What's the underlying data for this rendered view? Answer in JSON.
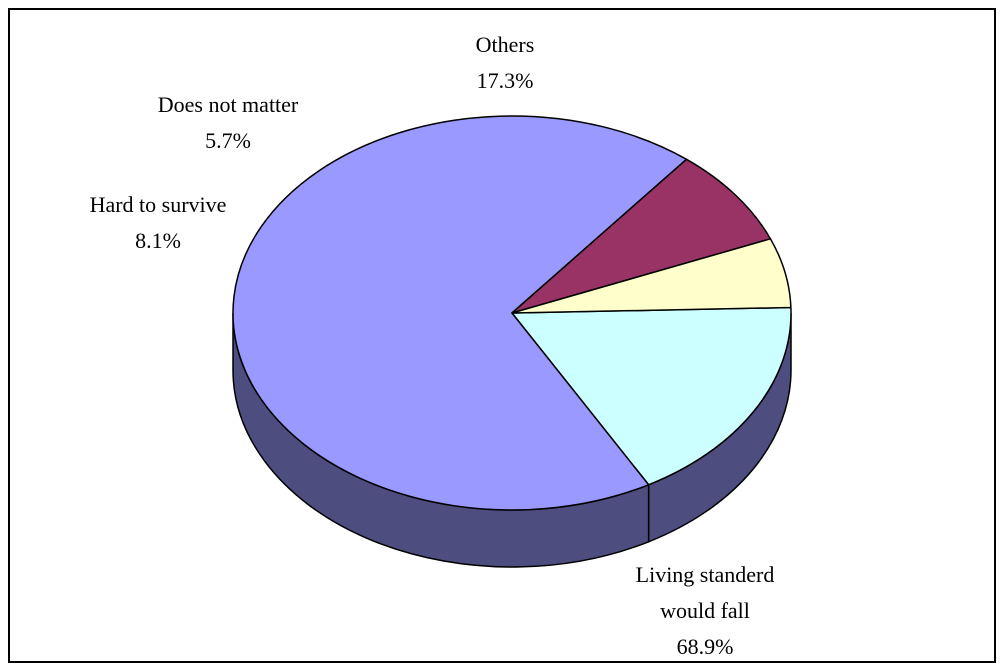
{
  "chart_data": {
    "type": "pie",
    "title": "",
    "slices": [
      {
        "label": "Others",
        "value": 17.3,
        "value_label": "17.3%",
        "color": "#CCFFFF"
      },
      {
        "label": "Living standerd would fall",
        "label_lines": [
          "Living standerd",
          "would fall"
        ],
        "value": 68.9,
        "value_label": "68.9%",
        "color": "#9999FF"
      },
      {
        "label": "Hard to survive",
        "value": 8.1,
        "value_label": "8.1%",
        "color": "#993366"
      },
      {
        "label": "Does not matter",
        "value": 5.7,
        "value_label": "5.7%",
        "color": "#FFFFCC"
      }
    ],
    "side_color": "#4D4D80",
    "legend": "none"
  }
}
